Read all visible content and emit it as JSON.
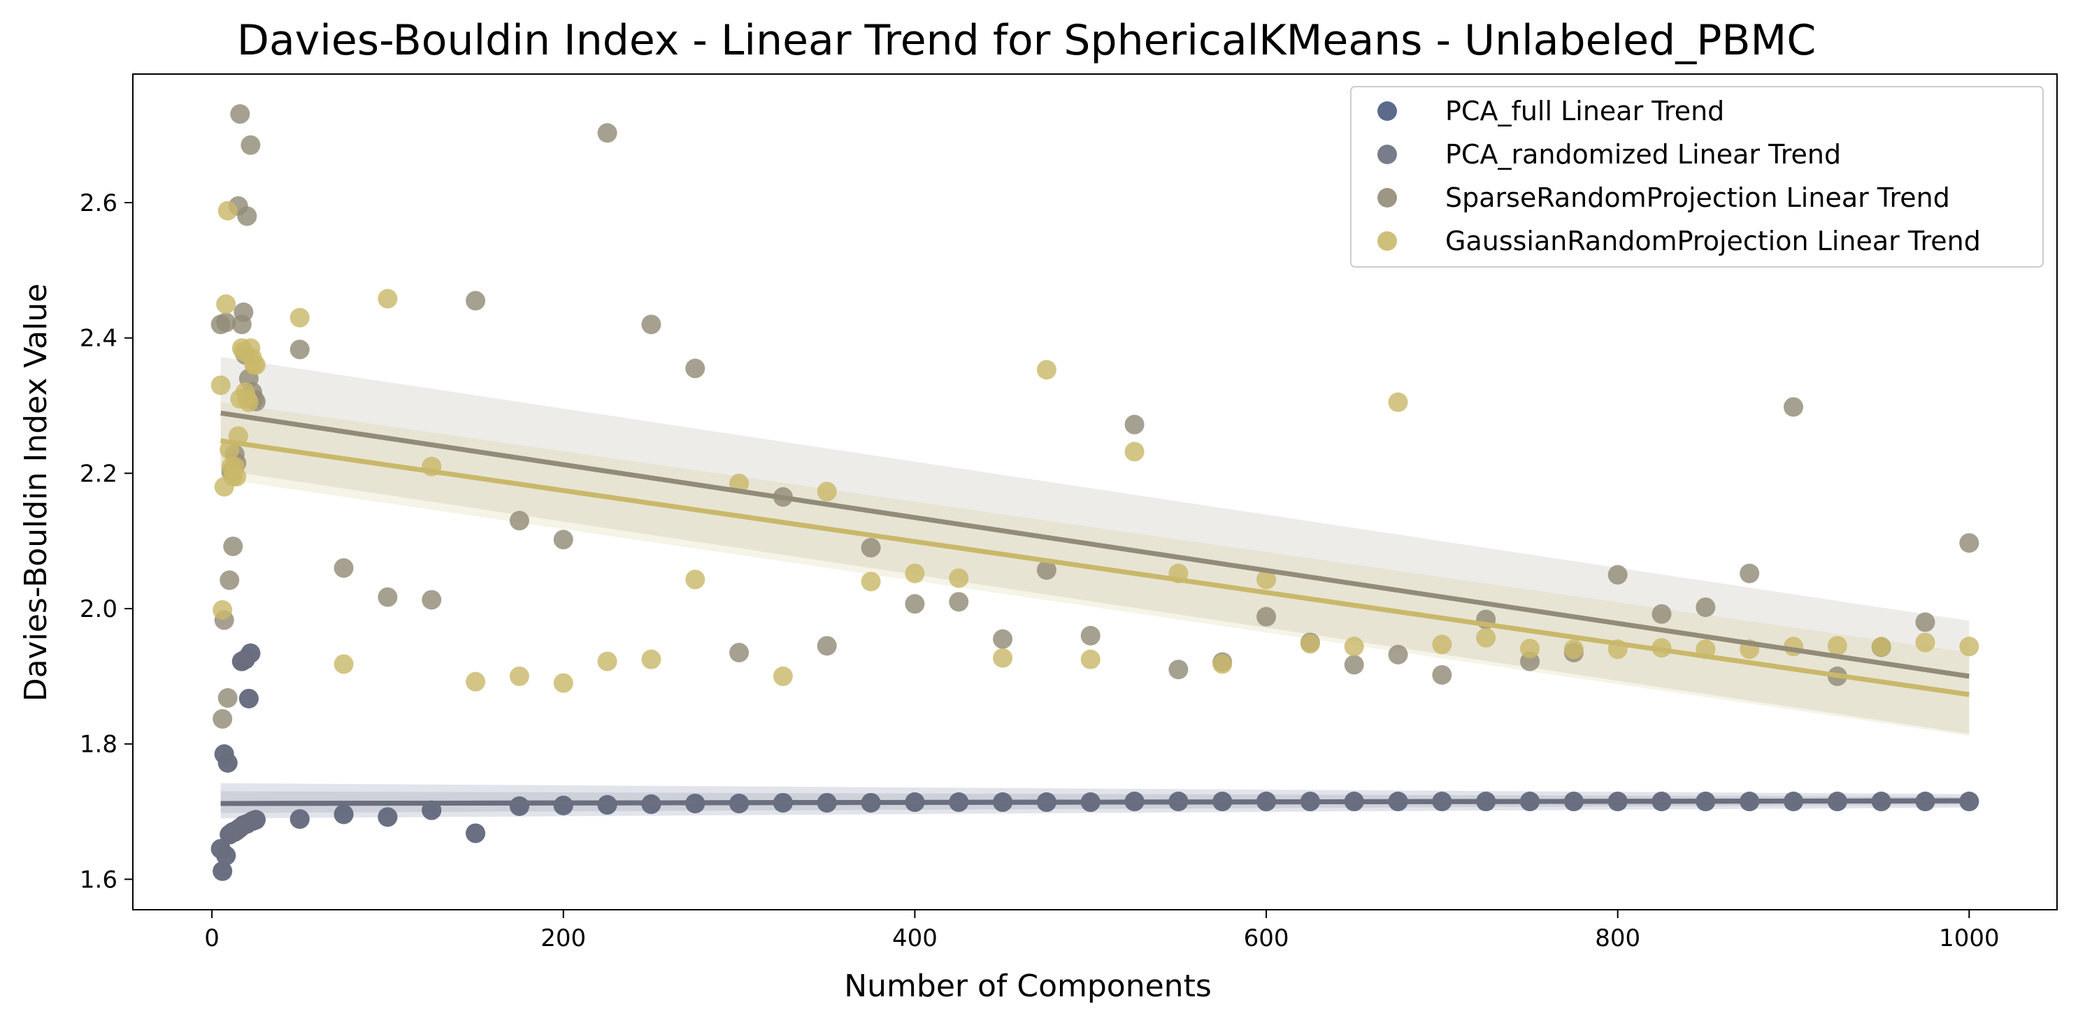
{
  "chart_data": {
    "type": "scatter",
    "title": "Davies-Bouldin Index - Linear Trend for SphericalKMeans - Unlabeled_PBMC",
    "xlabel": "Number of Components",
    "ylabel": "Davies-Bouldin Index Value",
    "xlim": [
      -45,
      1050
    ],
    "ylim": [
      1.555,
      2.79
    ],
    "xticks": [
      0,
      200,
      400,
      600,
      800,
      1000
    ],
    "yticks": [
      1.6,
      1.8,
      2.0,
      2.2,
      2.4,
      2.6
    ],
    "xtick_labels": [
      "0",
      "200",
      "400",
      "600",
      "800",
      "1000"
    ],
    "ytick_labels": [
      "1.6",
      "1.8",
      "2.0",
      "2.2",
      "2.4",
      "2.6"
    ],
    "grid": false,
    "legend_position": "top-right",
    "series": [
      {
        "name": "PCA_full Linear Trend",
        "color": "#4a5a80",
        "x": [
          5,
          6,
          7,
          8,
          9,
          10,
          11,
          12,
          13,
          14,
          15,
          16,
          17,
          18,
          19,
          20,
          21,
          22,
          23,
          24,
          25,
          50,
          75,
          100,
          125,
          150,
          175,
          200,
          225,
          250,
          275,
          300,
          325,
          350,
          375,
          400,
          425,
          450,
          475,
          500,
          525,
          550,
          575,
          600,
          625,
          650,
          675,
          700,
          725,
          750,
          775,
          800,
          825,
          850,
          875,
          900,
          925,
          950,
          975,
          1000
        ],
        "y": [
          1.645,
          1.612,
          1.785,
          1.635,
          1.772,
          1.666,
          1.668,
          1.67,
          1.67,
          1.672,
          1.674,
          1.676,
          1.922,
          1.68,
          1.925,
          1.682,
          1.867,
          1.934,
          1.686,
          1.687,
          1.688,
          1.689,
          1.696,
          1.692,
          1.702,
          1.668,
          1.708,
          1.709,
          1.71,
          1.711,
          1.712,
          1.712,
          1.713,
          1.713,
          1.713,
          1.714,
          1.714,
          1.714,
          1.714,
          1.714,
          1.715,
          1.715,
          1.715,
          1.715,
          1.715,
          1.715,
          1.715,
          1.715,
          1.715,
          1.715,
          1.715,
          1.715,
          1.715,
          1.715,
          1.715,
          1.715,
          1.715,
          1.715,
          1.715,
          1.715
        ],
        "trend": {
          "x": [
            5,
            1000
          ],
          "y": [
            1.712,
            1.716
          ]
        },
        "ci_upper": [
          1.742,
          1.726
        ],
        "ci_lower": [
          1.69,
          1.706
        ]
      },
      {
        "name": "PCA_randomized Linear Trend",
        "color": "#6a6e7e",
        "x": [
          5,
          6,
          7,
          8,
          9,
          10,
          11,
          12,
          13,
          14,
          15,
          16,
          17,
          18,
          19,
          20,
          21,
          22,
          23,
          24,
          25,
          50,
          75,
          100,
          125,
          150,
          175,
          200,
          225,
          250,
          275,
          300,
          325,
          350,
          375,
          400,
          425,
          450,
          475,
          500,
          525,
          550,
          575,
          600,
          625,
          650,
          675,
          700,
          725,
          750,
          775,
          800,
          825,
          850,
          875,
          900,
          925,
          950,
          975,
          1000
        ],
        "y": [
          1.645,
          1.612,
          1.785,
          1.635,
          1.772,
          1.666,
          1.668,
          1.67,
          1.67,
          1.672,
          1.674,
          1.676,
          1.922,
          1.68,
          1.925,
          1.682,
          1.867,
          1.934,
          1.686,
          1.687,
          1.688,
          1.689,
          1.696,
          1.692,
          1.702,
          1.668,
          1.708,
          1.709,
          1.71,
          1.711,
          1.712,
          1.712,
          1.713,
          1.713,
          1.713,
          1.714,
          1.714,
          1.714,
          1.714,
          1.714,
          1.715,
          1.715,
          1.715,
          1.715,
          1.715,
          1.715,
          1.715,
          1.715,
          1.715,
          1.715,
          1.715,
          1.715,
          1.715,
          1.715,
          1.715,
          1.715,
          1.715,
          1.715,
          1.715,
          1.715
        ],
        "trend": {
          "x": [
            5,
            1000
          ],
          "y": [
            1.712,
            1.716
          ]
        },
        "ci_upper": [
          1.73,
          1.722
        ],
        "ci_lower": [
          1.698,
          1.71
        ]
      },
      {
        "name": "SparseRandomProjection Linear Trend",
        "color": "#928b78",
        "x": [
          5,
          6,
          7,
          8,
          9,
          10,
          11,
          12,
          13,
          14,
          15,
          16,
          17,
          18,
          19,
          20,
          21,
          22,
          23,
          24,
          25,
          50,
          75,
          100,
          125,
          150,
          175,
          200,
          225,
          250,
          275,
          300,
          325,
          350,
          375,
          400,
          425,
          450,
          475,
          500,
          525,
          550,
          575,
          600,
          625,
          650,
          675,
          700,
          725,
          750,
          775,
          800,
          825,
          850,
          875,
          900,
          925,
          950,
          975,
          1000
        ],
        "y": [
          2.42,
          1.837,
          1.983,
          2.423,
          1.868,
          2.042,
          2.202,
          2.092,
          2.228,
          2.215,
          2.595,
          2.731,
          2.42,
          2.438,
          2.375,
          2.58,
          2.34,
          2.685,
          2.32,
          2.31,
          2.306,
          2.383,
          2.06,
          2.017,
          2.013,
          2.455,
          2.13,
          2.102,
          2.703,
          2.42,
          2.355,
          1.935,
          2.165,
          1.945,
          2.09,
          2.007,
          2.01,
          1.955,
          2.057,
          1.96,
          2.272,
          1.91,
          1.921,
          1.988,
          1.95,
          1.917,
          1.932,
          1.902,
          1.984,
          1.922,
          1.935,
          2.05,
          1.992,
          2.002,
          2.052,
          2.298,
          1.9,
          1.943,
          1.98,
          2.097
        ],
        "trend": {
          "x": [
            5,
            1000
          ],
          "y": [
            2.289,
            1.9
          ]
        },
        "ci_upper": [
          2.372,
          1.982
        ],
        "ci_lower": [
          2.205,
          1.815
        ]
      },
      {
        "name": "GaussianRandomProjection Linear Trend",
        "color": "#c9b86a",
        "x": [
          5,
          6,
          7,
          8,
          9,
          10,
          11,
          12,
          13,
          14,
          15,
          16,
          17,
          18,
          19,
          20,
          21,
          22,
          23,
          24,
          25,
          50,
          75,
          100,
          125,
          150,
          175,
          200,
          225,
          250,
          275,
          300,
          325,
          350,
          375,
          400,
          425,
          450,
          475,
          500,
          525,
          550,
          575,
          600,
          625,
          650,
          675,
          700,
          725,
          750,
          775,
          800,
          825,
          850,
          875,
          900,
          925,
          950,
          975,
          1000
        ],
        "y": [
          2.33,
          1.998,
          2.18,
          2.45,
          2.588,
          2.235,
          2.21,
          2.195,
          2.21,
          2.195,
          2.255,
          2.31,
          2.385,
          2.38,
          2.32,
          2.31,
          2.305,
          2.385,
          2.37,
          2.36,
          2.36,
          2.43,
          1.918,
          2.458,
          2.21,
          1.892,
          1.9,
          1.89,
          1.922,
          1.925,
          2.043,
          2.185,
          1.9,
          2.173,
          2.04,
          2.052,
          2.045,
          1.927,
          2.353,
          1.925,
          2.232,
          2.052,
          1.918,
          2.043,
          1.948,
          1.944,
          2.305,
          1.947,
          1.957,
          1.941,
          1.94,
          1.94,
          1.942,
          1.94,
          1.94,
          1.944,
          1.945,
          1.944,
          1.95,
          1.944
        ],
        "trend": {
          "x": [
            5,
            1000
          ],
          "y": [
            2.248,
            1.873
          ]
        },
        "ci_upper": [
          2.305,
          1.935
        ],
        "ci_lower": [
          2.192,
          1.812
        ]
      }
    ]
  }
}
